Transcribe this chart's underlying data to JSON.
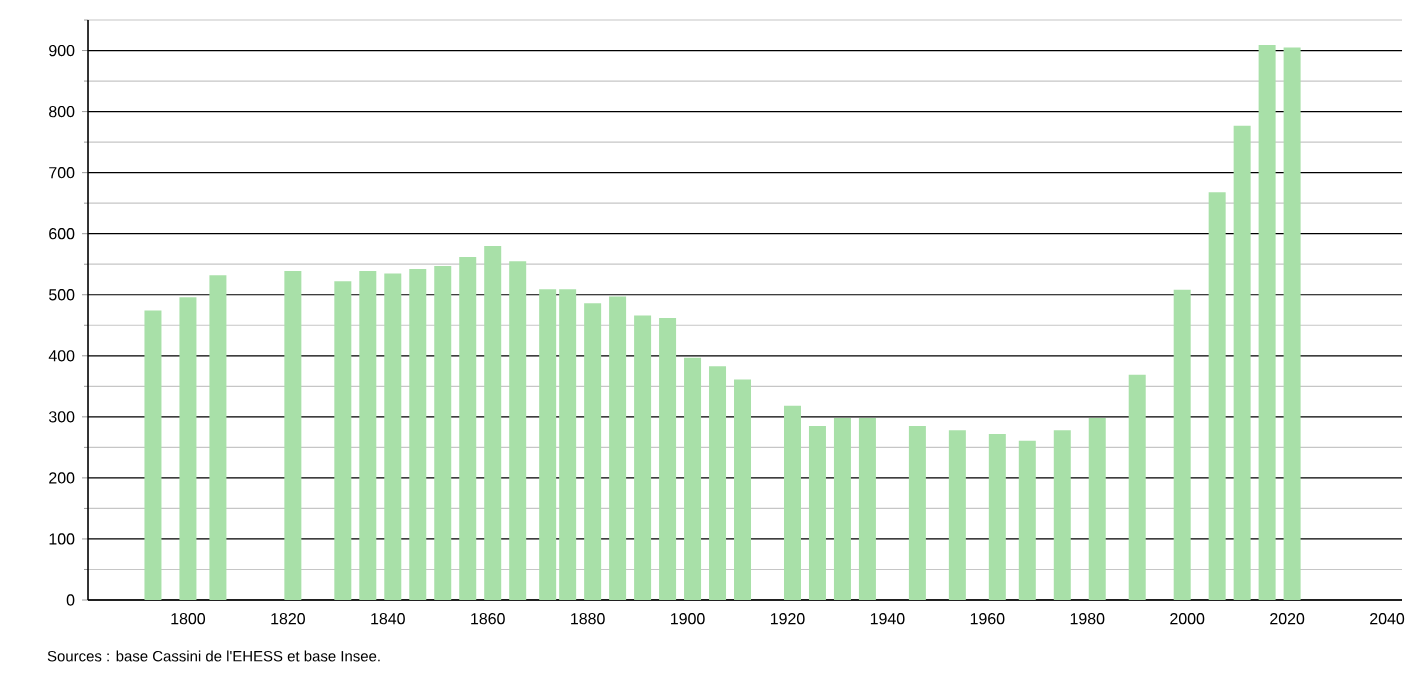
{
  "chart_data": {
    "type": "bar",
    "color": "#a8e0a8",
    "x": [
      1793,
      1800,
      1806,
      1821,
      1831,
      1836,
      1841,
      1846,
      1851,
      1856,
      1861,
      1866,
      1872,
      1876,
      1881,
      1886,
      1891,
      1896,
      1901,
      1906,
      1911,
      1921,
      1926,
      1931,
      1936,
      1946,
      1954,
      1962,
      1968,
      1975,
      1982,
      1990,
      1999,
      2006,
      2011,
      2016,
      2021
    ],
    "values": [
      474,
      496,
      532,
      539,
      522,
      539,
      535,
      542,
      547,
      562,
      580,
      555,
      509,
      509,
      486,
      497,
      466,
      462,
      397,
      383,
      361,
      318,
      285,
      298,
      298,
      285,
      278,
      272,
      261,
      278,
      298,
      369,
      508,
      668,
      777,
      909,
      905
    ],
    "xlim": [
      1780,
      2043
    ],
    "ylim": [
      0,
      950
    ],
    "xticks": [
      1800,
      1820,
      1840,
      1860,
      1880,
      1900,
      1920,
      1940,
      1960,
      1980,
      2000,
      2020,
      2040
    ],
    "yticks": [
      0,
      100,
      200,
      300,
      400,
      500,
      600,
      700,
      800,
      900
    ],
    "grid": "y",
    "annotations": [
      "Sources : base Cassini de l'EHESS et base Insee."
    ]
  }
}
